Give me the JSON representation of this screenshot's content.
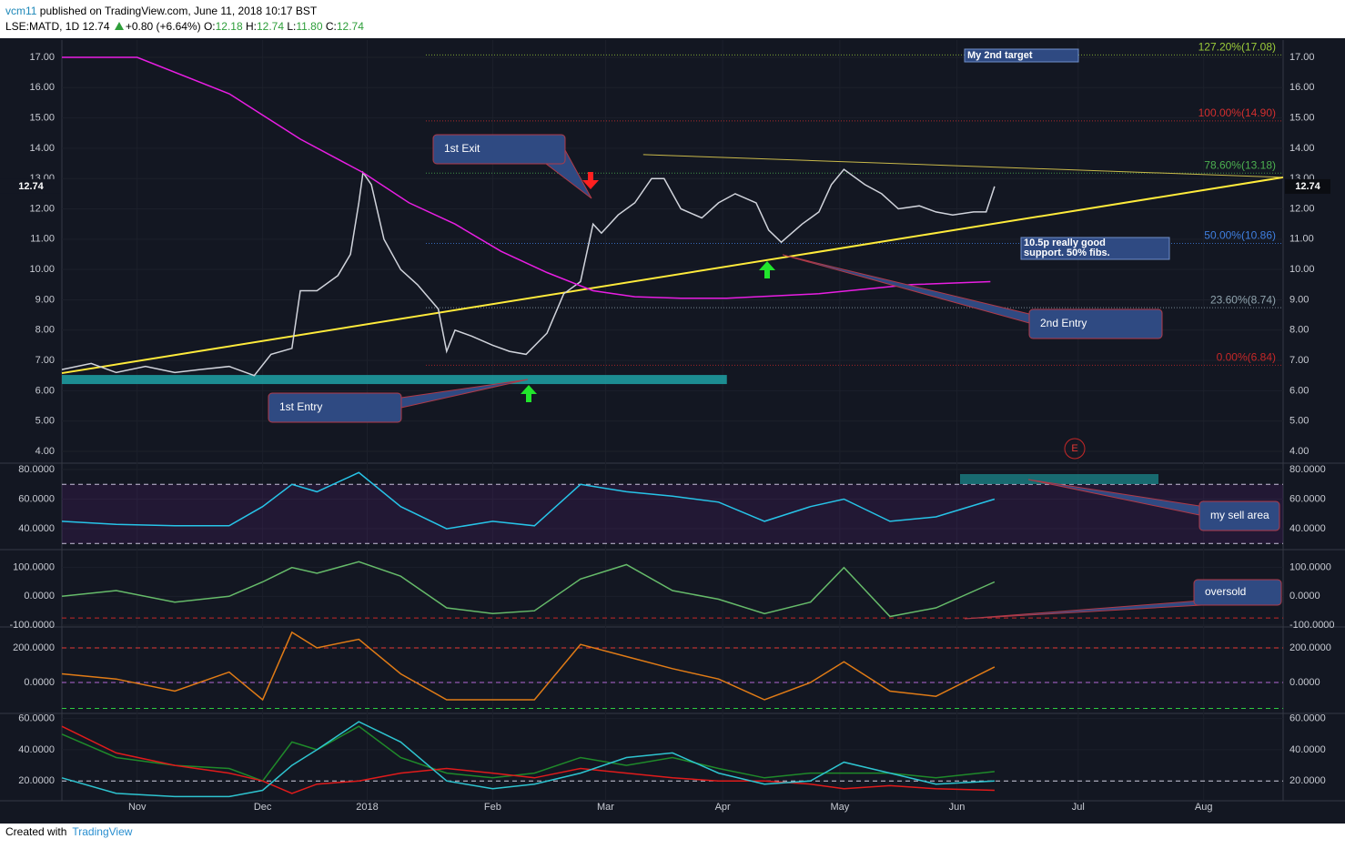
{
  "header": {
    "author": "vcm11",
    "published": "published on TradingView.com, June 11, 2018 10:17 BST",
    "symbol": "LSE:MATD, 1D",
    "last": "12.74",
    "change": "+0.80 (+6.64%)",
    "open_label": "O:",
    "open": "12.18",
    "high_label": "H:",
    "high": "12.74",
    "low_label": "L:",
    "low": "11.80",
    "close_label": "C:",
    "close": "12.74"
  },
  "footer": {
    "created": "Created with",
    "brand": "TradingView"
  },
  "annotations": [
    {
      "text": "My 2nd target"
    },
    {
      "text": "1st Exit"
    },
    {
      "lines": [
        "10.5p really good",
        "support. 50% fibs."
      ]
    },
    {
      "text": "2nd Entry"
    },
    {
      "text": "1st Entry"
    },
    {
      "text": "my sell area"
    },
    {
      "text": "oversold"
    },
    {
      "text": "E"
    }
  ],
  "chart_data": [
    {
      "type": "line",
      "xlim": [
        0,
        292
      ],
      "xticks": [
        {
          "value": 18,
          "label": "Nov"
        },
        {
          "value": 48,
          "label": "Dec"
        },
        {
          "value": 73,
          "label": "2018"
        },
        {
          "value": 103,
          "label": "Feb"
        },
        {
          "value": 130,
          "label": "Mar"
        },
        {
          "value": 158,
          "label": "Apr"
        },
        {
          "value": 186,
          "label": "May"
        },
        {
          "value": 214,
          "label": "Jun"
        },
        {
          "value": 243,
          "label": "Jul"
        },
        {
          "value": 273,
          "label": "Aug"
        }
      ],
      "ylim": [
        3.58,
        17.57
      ],
      "yticks": [
        {
          "value": 4,
          "label": "4.00"
        },
        {
          "value": 5,
          "label": "5.00"
        },
        {
          "value": 6,
          "label": "6.00"
        },
        {
          "value": 7,
          "label": "7.00"
        },
        {
          "value": 8,
          "label": "8.00"
        },
        {
          "value": 9,
          "label": "9.00"
        },
        {
          "value": 10,
          "label": "10.00"
        },
        {
          "value": 11,
          "label": "11.00"
        },
        {
          "value": 12,
          "label": "12.00"
        },
        {
          "value": 13,
          "label": "13.00"
        },
        {
          "value": 14,
          "label": "14.00"
        },
        {
          "value": 15,
          "label": "15.00"
        },
        {
          "value": 16,
          "label": "16.00"
        },
        {
          "value": 17,
          "label": "17.00"
        }
      ],
      "series": [
        {
          "color": "#d1d4dc",
          "x": [
            0,
            7,
            13,
            20,
            27,
            33,
            40,
            46,
            50,
            55,
            57,
            61,
            66,
            69,
            71,
            72,
            74,
            77,
            81,
            85,
            90,
            92,
            94,
            98,
            103,
            107,
            111,
            116,
            120,
            124,
            127,
            129,
            133,
            137,
            141,
            144,
            148,
            153,
            157,
            161,
            166,
            169,
            172,
            177,
            181,
            184,
            187,
            192,
            196,
            200,
            205,
            209,
            213,
            218,
            221,
            223
          ],
          "values": [
            6.7,
            6.9,
            6.6,
            6.8,
            6.6,
            6.7,
            6.8,
            6.5,
            7.2,
            7.4,
            9.3,
            9.3,
            9.8,
            10.5,
            12.2,
            13.2,
            12.8,
            11.0,
            10.0,
            9.5,
            8.7,
            7.3,
            8.0,
            7.8,
            7.5,
            7.3,
            7.2,
            7.9,
            9.2,
            9.6,
            11.5,
            11.2,
            11.8,
            12.2,
            13.0,
            13.0,
            12.0,
            11.7,
            12.2,
            12.5,
            12.2,
            11.3,
            10.9,
            11.5,
            11.9,
            12.8,
            13.3,
            12.8,
            12.5,
            12.0,
            12.1,
            11.9,
            11.8,
            11.9,
            11.9,
            12.74
          ]
        },
        {
          "color": "#e91ee3",
          "x": [
            0,
            18,
            40,
            57,
            72,
            83,
            94,
            105,
            116,
            127,
            137,
            148,
            159,
            181,
            203,
            222
          ],
          "values": [
            17.0,
            17.0,
            15.8,
            14.3,
            13.2,
            12.2,
            11.5,
            10.6,
            9.9,
            9.3,
            9.1,
            9.05,
            9.05,
            9.2,
            9.5,
            9.6
          ]
        }
      ],
      "levels": [
        {
          "label": "127.20%(17.08)",
          "value": 17.08,
          "color": "#9ccc3a"
        },
        {
          "label": "100.00%(14.90)",
          "value": 14.9,
          "color": "#d32f2f"
        },
        {
          "label": "78.60%(13.18)",
          "value": 13.18,
          "color": "#4caf50"
        },
        {
          "label": "50.00%(10.86)",
          "value": 10.86,
          "color": "#3f7fe0"
        },
        {
          "label": "23.60%(8.74)",
          "value": 8.74,
          "color": "#90a4ae"
        },
        {
          "label": "0.00%(6.84)",
          "value": 6.84,
          "color": "#c62828"
        }
      ],
      "trendlines": [
        {
          "x": [
            0,
            292
          ],
          "y": [
            6.58,
            13.04
          ],
          "color": "#ffeb3b"
        },
        {
          "x": [
            139,
            292
          ],
          "y": [
            13.79,
            13.04
          ],
          "color": "#c9b94a"
        }
      ],
      "zones": [
        {
          "x": [
            0,
            159
          ],
          "y": [
            6.22,
            6.52
          ],
          "color": "#1fa2a6"
        }
      ]
    },
    {
      "type": "line",
      "ylim": [
        26.5,
        83.7
      ],
      "yticks": [
        {
          "value": 40,
          "label": "40.0000"
        },
        {
          "value": 60,
          "label": "60.0000"
        },
        {
          "value": 80,
          "label": "80.0000"
        }
      ],
      "hlines": [
        {
          "value": 70,
          "color": "#cfcfe0"
        },
        {
          "value": 30,
          "color": "#cfcfe0"
        }
      ],
      "series": [
        {
          "color": "#27c4e8",
          "x": [
            0,
            13,
            27,
            40,
            48,
            55,
            61,
            71,
            81,
            92,
            103,
            113,
            124,
            135,
            146,
            157,
            168,
            179,
            187,
            198,
            209,
            223
          ],
          "values": [
            45,
            43,
            42,
            42,
            55,
            70,
            65,
            78,
            55,
            40,
            45,
            42,
            70,
            65,
            62,
            58,
            45,
            55,
            60,
            45,
            48,
            60
          ]
        }
      ]
    },
    {
      "type": "line",
      "ylim": [
        -100,
        159
      ],
      "yticks": [
        {
          "value": -100,
          "label": "-100.0000"
        },
        {
          "value": 0,
          "label": "0.0000"
        },
        {
          "value": 100,
          "label": "100.0000"
        }
      ],
      "hlines": [
        {
          "value": -75,
          "color": "#c62828"
        }
      ],
      "series": [
        {
          "color": "#66bb6a",
          "x": [
            0,
            13,
            27,
            40,
            48,
            55,
            61,
            71,
            81,
            92,
            103,
            113,
            124,
            135,
            146,
            157,
            168,
            179,
            187,
            198,
            209,
            223
          ],
          "values": [
            0,
            20,
            -20,
            0,
            50,
            100,
            80,
            120,
            70,
            -40,
            -60,
            -50,
            60,
            110,
            20,
            -10,
            -60,
            -20,
            100,
            -70,
            -40,
            50
          ]
        }
      ]
    },
    {
      "type": "line",
      "ylim": [
        -174,
        316
      ],
      "yticks": [
        {
          "value": 0,
          "label": "0.0000"
        },
        {
          "value": 200,
          "label": "200.0000"
        }
      ],
      "hlines": [
        {
          "value": 200,
          "color": "#e53935"
        },
        {
          "value": 0,
          "color": "#b36ad6"
        },
        {
          "value": -150,
          "color": "#2ecc40"
        }
      ],
      "series": [
        {
          "color": "#e07b16",
          "x": [
            0,
            13,
            27,
            40,
            48,
            55,
            61,
            71,
            81,
            92,
            103,
            113,
            124,
            135,
            146,
            157,
            168,
            179,
            187,
            198,
            209,
            223
          ],
          "values": [
            50,
            20,
            -50,
            60,
            -100,
            290,
            200,
            250,
            50,
            -100,
            -100,
            -100,
            220,
            150,
            80,
            20,
            -100,
            0,
            120,
            -50,
            -80,
            90
          ]
        }
      ]
    },
    {
      "type": "line",
      "ylim": [
        7.3,
        62.7
      ],
      "yticks": [
        {
          "value": 20,
          "label": "20.0000"
        },
        {
          "value": 40,
          "label": "40.0000"
        },
        {
          "value": 60,
          "label": "60.0000"
        }
      ],
      "hlines": [
        {
          "value": 20,
          "color": "#cfcfe0"
        }
      ],
      "series": [
        {
          "color": "#1f8a2a",
          "x": [
            0,
            13,
            27,
            40,
            48,
            55,
            61,
            71,
            81,
            92,
            103,
            113,
            124,
            135,
            146,
            157,
            168,
            179,
            187,
            198,
            209,
            223
          ],
          "values": [
            50,
            35,
            30,
            28,
            20,
            45,
            40,
            55,
            35,
            25,
            22,
            25,
            35,
            30,
            35,
            28,
            22,
            25,
            25,
            25,
            22,
            26
          ]
        },
        {
          "color": "#e01b1b",
          "x": [
            0,
            13,
            27,
            40,
            48,
            55,
            61,
            71,
            81,
            92,
            103,
            113,
            124,
            135,
            146,
            157,
            168,
            179,
            187,
            198,
            209,
            223
          ],
          "values": [
            55,
            38,
            30,
            25,
            20,
            12,
            18,
            20,
            25,
            28,
            25,
            22,
            28,
            25,
            22,
            20,
            20,
            18,
            15,
            17,
            15,
            14
          ]
        },
        {
          "color": "#2ec4d0",
          "x": [
            0,
            13,
            27,
            40,
            48,
            55,
            61,
            71,
            81,
            92,
            103,
            113,
            124,
            135,
            146,
            157,
            168,
            179,
            187,
            198,
            209,
            223
          ],
          "values": [
            22,
            12,
            10,
            10,
            14,
            30,
            40,
            58,
            45,
            20,
            15,
            18,
            25,
            35,
            38,
            25,
            18,
            20,
            32,
            25,
            18,
            20
          ]
        }
      ]
    }
  ]
}
